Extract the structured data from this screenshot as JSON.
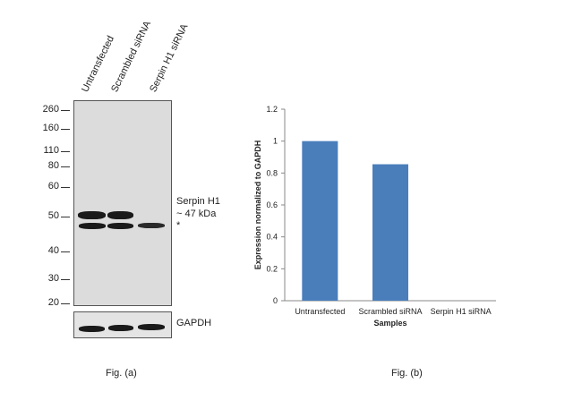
{
  "figure_a": {
    "lanes": [
      "Untransfected",
      "Scrambled siRNA",
      "Serpin H1 siRNA"
    ],
    "mw_markers": [
      "260",
      "160",
      "110",
      "80",
      "60",
      "50",
      "40",
      "30",
      "20"
    ],
    "target_label_line1": "Serpin H1",
    "target_label_line2": "~ 47 kDa",
    "nonspecific_mark": "*",
    "loading_control": "GAPDH",
    "caption": "Fig. (a)"
  },
  "figure_b": {
    "caption": "Fig. (b)"
  },
  "chart_data": {
    "type": "bar",
    "categories": [
      "Untransfected",
      "Scrambled siRNA",
      "Serpin H1 siRNA"
    ],
    "values": [
      1.0,
      0.855,
      0.0
    ],
    "xlabel": "Samples",
    "ylabel": "Expression normalized to GAPDH",
    "ylim": [
      0,
      1.2
    ],
    "yticks": [
      "0",
      "0.2",
      "0.4",
      "0.6",
      "0.8",
      "1",
      "1.2"
    ],
    "grid": false,
    "legend": "none",
    "bar_color": "#4a7ebb"
  }
}
